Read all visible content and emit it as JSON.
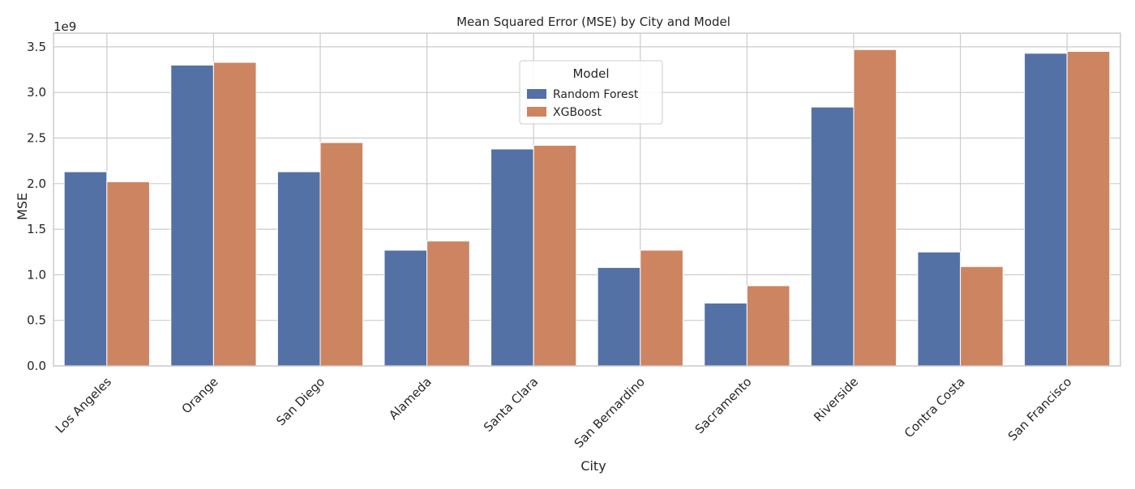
{
  "chart_data": {
    "type": "bar",
    "title": "Mean Squared Error (MSE) by City and Model",
    "xlabel": "City",
    "ylabel": "MSE",
    "y_offset_label": "1e9",
    "ylim": [
      0,
      3.65
    ],
    "yticks": [
      "0.0",
      "0.5",
      "1.0",
      "1.5",
      "2.0",
      "2.5",
      "3.0",
      "3.5"
    ],
    "grid": true,
    "legend": {
      "title": "Model",
      "placement": "top-center"
    },
    "categories": [
      "Los Angeles",
      "Orange",
      "San Diego",
      "Alameda",
      "Santa Clara",
      "San Bernardino",
      "Sacramento",
      "Riverside",
      "Contra Costa",
      "San Francisco"
    ],
    "series": [
      {
        "name": "Random Forest",
        "color": "#5471a6",
        "values": [
          2.13,
          3.3,
          2.13,
          1.27,
          2.38,
          1.08,
          0.69,
          2.84,
          1.25,
          3.43
        ]
      },
      {
        "name": "XGBoost",
        "color": "#cc8560",
        "values": [
          2.02,
          3.33,
          2.45,
          1.37,
          2.42,
          1.27,
          0.88,
          3.47,
          1.09,
          3.45
        ]
      }
    ]
  }
}
